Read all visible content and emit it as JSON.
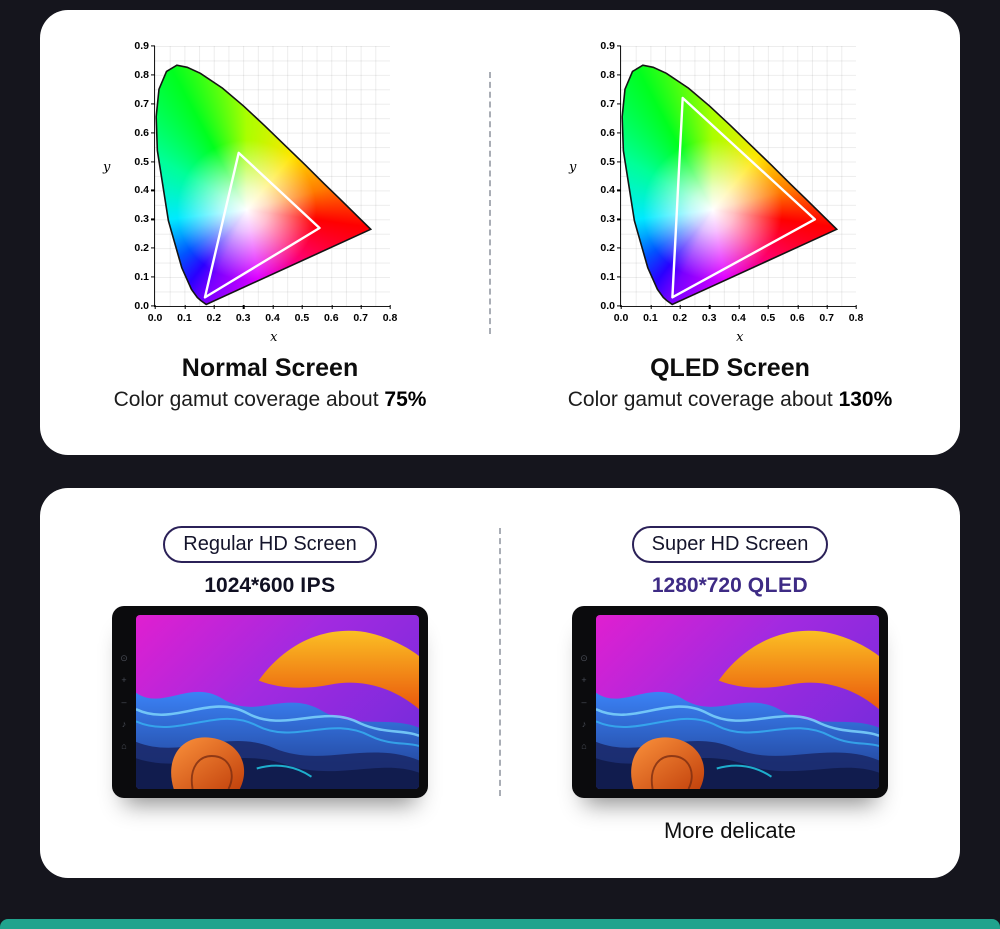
{
  "page": {
    "background": "#15151d",
    "card_color": "#ffffff",
    "bottom_bar_color": "#21a38d",
    "badge_border_color": "#2b2158",
    "accent_purple": "#3e2b85"
  },
  "gamut_card": {
    "columns": [
      {
        "title": "Normal Screen",
        "caption_prefix": "Color gamut coverage about",
        "coverage": "75%"
      },
      {
        "title": "QLED Screen",
        "caption_prefix": "Color gamut coverage about",
        "coverage": "130%"
      }
    ],
    "axes": {
      "x_label": "x",
      "y_label": "y",
      "x_ticks": [
        "0.0",
        "0.1",
        "0.2",
        "0.3",
        "0.4",
        "0.5",
        "0.6",
        "0.7",
        "0.8"
      ],
      "y_ticks": [
        "0.9",
        "0.8",
        "0.7",
        "0.6",
        "0.5",
        "0.4",
        "0.3",
        "0.2",
        "0.1",
        "0.0"
      ]
    }
  },
  "screen_card": {
    "columns": [
      {
        "badge": "Regular HD Screen",
        "resolution": "1024*600",
        "panel": "IPS"
      },
      {
        "badge": "Super HD Screen",
        "resolution": "1280*720",
        "panel": "QLED",
        "caption": "More delicate",
        "accent": "#3e2b85"
      }
    ]
  },
  "chart_data": [
    {
      "type": "chromaticity_diagram",
      "title": "Normal Screen",
      "xlabel": "x",
      "ylabel": "y",
      "xlim": [
        0,
        0.8
      ],
      "ylim": [
        0,
        0.9
      ],
      "x_tick_step": 0.1,
      "y_tick_step": 0.1,
      "grid": true,
      "gamut_triangle": [
        [
          0.285,
          0.53
        ],
        [
          0.56,
          0.27
        ],
        [
          0.17,
          0.03
        ]
      ],
      "coverage": "75%"
    },
    {
      "type": "chromaticity_diagram",
      "title": "QLED Screen",
      "xlabel": "x",
      "ylabel": "y",
      "xlim": [
        0,
        0.8
      ],
      "ylim": [
        0,
        0.9
      ],
      "x_tick_step": 0.1,
      "y_tick_step": 0.1,
      "grid": true,
      "gamut_triangle": [
        [
          0.21,
          0.72
        ],
        [
          0.66,
          0.3
        ],
        [
          0.175,
          0.03
        ]
      ],
      "coverage": "130%"
    }
  ]
}
